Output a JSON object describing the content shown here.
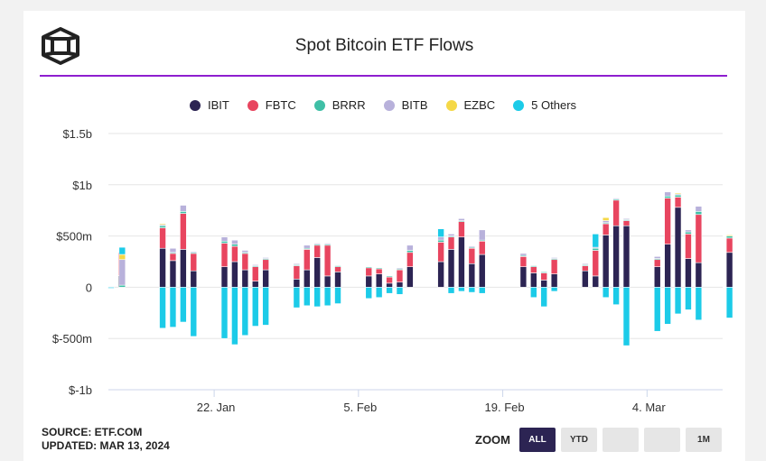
{
  "header": {
    "title": "Spot Bitcoin ETF Flows"
  },
  "legend": [
    {
      "label": "IBIT",
      "color": "#2c2453"
    },
    {
      "label": "FBTC",
      "color": "#e8455f"
    },
    {
      "label": "BRRR",
      "color": "#3fbfa6"
    },
    {
      "label": "BITB",
      "color": "#b8b1db"
    },
    {
      "label": "EZBC",
      "color": "#f5d847"
    },
    {
      "label": "5 Others",
      "color": "#1ccbe8"
    }
  ],
  "footer": {
    "source": "SOURCE: ETF.COM",
    "updated": "UPDATED: MAR 13, 2024"
  },
  "zoom": {
    "label": "ZOOM",
    "buttons": [
      "ALL",
      "YTD",
      "",
      "",
      "1M"
    ],
    "active": "ALL"
  },
  "chart_data": {
    "type": "bar",
    "stacked": true,
    "title": "Spot Bitcoin ETF Flows",
    "unit": "USD",
    "ylim": [
      -1000000000,
      1500000000
    ],
    "yticks": [
      {
        "value": 1500,
        "label": "$1.5b"
      },
      {
        "value": 1000,
        "label": "$1b"
      },
      {
        "value": 500,
        "label": "$500m"
      },
      {
        "value": 0,
        "label": "0"
      },
      {
        "value": -500,
        "label": "$-500m"
      },
      {
        "value": -1000,
        "label": "$-1b"
      }
    ],
    "xticks": [
      {
        "day": 10,
        "label": "22. Jan"
      },
      {
        "day": 24,
        "label": "5. Feb"
      },
      {
        "day": 38,
        "label": "19. Feb"
      },
      {
        "day": 52,
        "label": "4. Mar"
      }
    ],
    "series_order": [
      "IBIT",
      "FBTC",
      "BRRR",
      "BITB",
      "EZBC",
      "5 Others"
    ],
    "values_unit": "millions USD",
    "days": [
      {
        "date": "2024-01-11",
        "day": 0,
        "IBIT": 0,
        "FBTC": 0,
        "BRRR": 0,
        "BITB": 0,
        "EZBC": 0,
        "5 Others": -10
      },
      {
        "date": "2024-01-12",
        "day": 1,
        "IBIT": 112,
        "FBTC": 227,
        "BRRR": 0,
        "BITB": 0,
        "EZBC": 0,
        "5 Others": 0
      },
      {
        "date": "2024-01-12b",
        "day": 1.08,
        "IBIT": 0,
        "FBTC": 0,
        "BRRR": 20,
        "BITB": 250,
        "EZBC": 50,
        "5 Others": 70
      },
      {
        "date": "2024-01-16",
        "day": 5,
        "IBIT": 380,
        "FBTC": 200,
        "BRRR": 20,
        "BITB": 10,
        "EZBC": 10,
        "5 Others": -400
      },
      {
        "date": "2024-01-17",
        "day": 6,
        "IBIT": 260,
        "FBTC": 70,
        "BRRR": 10,
        "BITB": 40,
        "EZBC": 0,
        "5 Others": -390
      },
      {
        "date": "2024-01-18",
        "day": 7,
        "IBIT": 370,
        "FBTC": 350,
        "BRRR": 20,
        "BITB": 60,
        "EZBC": 0,
        "5 Others": -340
      },
      {
        "date": "2024-01-19",
        "day": 8,
        "IBIT": 160,
        "FBTC": 170,
        "BRRR": 10,
        "BITB": 10,
        "EZBC": 0,
        "5 Others": -480
      },
      {
        "date": "2024-01-22",
        "day": 11,
        "IBIT": 200,
        "FBTC": 230,
        "BRRR": 20,
        "BITB": 40,
        "EZBC": 0,
        "5 Others": -500
      },
      {
        "date": "2024-01-23",
        "day": 12,
        "IBIT": 250,
        "FBTC": 150,
        "BRRR": 20,
        "BITB": 40,
        "EZBC": 0,
        "5 Others": -560
      },
      {
        "date": "2024-01-24",
        "day": 13,
        "IBIT": 170,
        "FBTC": 160,
        "BRRR": 10,
        "BITB": 20,
        "EZBC": 0,
        "5 Others": -470
      },
      {
        "date": "2024-01-25",
        "day": 14,
        "IBIT": 60,
        "FBTC": 140,
        "BRRR": 10,
        "BITB": 10,
        "EZBC": 0,
        "5 Others": -380
      },
      {
        "date": "2024-01-26",
        "day": 15,
        "IBIT": 170,
        "FBTC": 100,
        "BRRR": 10,
        "BITB": 10,
        "EZBC": 0,
        "5 Others": -370
      },
      {
        "date": "2024-01-29",
        "day": 18,
        "IBIT": 80,
        "FBTC": 130,
        "BRRR": 10,
        "BITB": 10,
        "EZBC": 0,
        "5 Others": -200
      },
      {
        "date": "2024-01-30",
        "day": 19,
        "IBIT": 170,
        "FBTC": 200,
        "BRRR": 10,
        "BITB": 30,
        "EZBC": 0,
        "5 Others": -180
      },
      {
        "date": "2024-01-31",
        "day": 20,
        "IBIT": 290,
        "FBTC": 120,
        "BRRR": 10,
        "BITB": 10,
        "EZBC": 0,
        "5 Others": -190
      },
      {
        "date": "2024-02-01",
        "day": 21,
        "IBIT": 110,
        "FBTC": 300,
        "BRRR": 10,
        "BITB": 10,
        "EZBC": 0,
        "5 Others": -180
      },
      {
        "date": "2024-02-02",
        "day": 22,
        "IBIT": 150,
        "FBTC": 50,
        "BRRR": 10,
        "BITB": 0,
        "EZBC": 0,
        "5 Others": -160
      },
      {
        "date": "2024-02-05",
        "day": 25,
        "IBIT": 110,
        "FBTC": 80,
        "BRRR": 10,
        "BITB": 0,
        "EZBC": 0,
        "5 Others": -110
      },
      {
        "date": "2024-02-06",
        "day": 26,
        "IBIT": 130,
        "FBTC": 50,
        "BRRR": 10,
        "BITB": 0,
        "EZBC": 0,
        "5 Others": -100
      },
      {
        "date": "2024-02-07",
        "day": 27,
        "IBIT": 40,
        "FBTC": 60,
        "BRRR": 10,
        "BITB": 0,
        "EZBC": 0,
        "5 Others": -60
      },
      {
        "date": "2024-02-08",
        "day": 28,
        "IBIT": 50,
        "FBTC": 120,
        "BRRR": 10,
        "BITB": 10,
        "EZBC": 0,
        "5 Others": -70
      },
      {
        "date": "2024-02-09",
        "day": 29,
        "IBIT": 200,
        "FBTC": 140,
        "BRRR": 20,
        "BITB": 50,
        "EZBC": 0,
        "5 Others": 0
      },
      {
        "date": "2024-02-12",
        "day": 32,
        "IBIT": 250,
        "FBTC": 190,
        "BRRR": 20,
        "BITB": 30,
        "EZBC": 0,
        "5 Others": 80
      },
      {
        "date": "2024-02-13",
        "day": 33,
        "IBIT": 370,
        "FBTC": 120,
        "BRRR": 10,
        "BITB": 20,
        "EZBC": 0,
        "5 Others": -60
      },
      {
        "date": "2024-02-14",
        "day": 34,
        "IBIT": 490,
        "FBTC": 150,
        "BRRR": 10,
        "BITB": 20,
        "EZBC": 0,
        "5 Others": -40
      },
      {
        "date": "2024-02-15",
        "day": 35,
        "IBIT": 230,
        "FBTC": 150,
        "BRRR": 10,
        "BITB": 10,
        "EZBC": 0,
        "5 Others": -50
      },
      {
        "date": "2024-02-16",
        "day": 36,
        "IBIT": 320,
        "FBTC": 130,
        "BRRR": 10,
        "BITB": 100,
        "EZBC": 0,
        "5 Others": -60
      },
      {
        "date": "2024-02-20",
        "day": 40,
        "IBIT": 200,
        "FBTC": 100,
        "BRRR": 10,
        "BITB": 20,
        "EZBC": 0,
        "5 Others": 0
      },
      {
        "date": "2024-02-21",
        "day": 41,
        "IBIT": 140,
        "FBTC": 60,
        "BRRR": 10,
        "BITB": 0,
        "EZBC": 0,
        "5 Others": -100
      },
      {
        "date": "2024-02-22",
        "day": 42,
        "IBIT": 70,
        "FBTC": 70,
        "BRRR": 10,
        "BITB": 0,
        "EZBC": 0,
        "5 Others": -190
      },
      {
        "date": "2024-02-23",
        "day": 43,
        "IBIT": 130,
        "FBTC": 140,
        "BRRR": 10,
        "BITB": 10,
        "EZBC": 0,
        "5 Others": -40
      },
      {
        "date": "2024-02-26",
        "day": 46,
        "IBIT": 160,
        "FBTC": 50,
        "BRRR": 10,
        "BITB": 10,
        "EZBC": 0,
        "5 Others": 0
      },
      {
        "date": "2024-02-27",
        "day": 47,
        "IBIT": 110,
        "FBTC": 250,
        "BRRR": 20,
        "BITB": 10,
        "EZBC": 0,
        "5 Others": 130
      },
      {
        "date": "2024-02-28",
        "day": 48,
        "IBIT": 510,
        "FBTC": 110,
        "BRRR": 10,
        "BITB": 20,
        "EZBC": 30,
        "5 Others": -100
      },
      {
        "date": "2024-02-29",
        "day": 49,
        "IBIT": 600,
        "FBTC": 250,
        "BRRR": 10,
        "BITB": 10,
        "EZBC": 0,
        "5 Others": -170
      },
      {
        "date": "2024-03-01",
        "day": 50,
        "IBIT": 600,
        "FBTC": 50,
        "BRRR": 10,
        "BITB": 10,
        "EZBC": 0,
        "5 Others": -570
      },
      {
        "date": "2024-03-04",
        "day": 53,
        "IBIT": 200,
        "FBTC": 70,
        "BRRR": 10,
        "BITB": 20,
        "EZBC": 0,
        "5 Others": -430
      },
      {
        "date": "2024-03-05",
        "day": 54,
        "IBIT": 420,
        "FBTC": 450,
        "BRRR": 20,
        "BITB": 40,
        "EZBC": 0,
        "5 Others": -360
      },
      {
        "date": "2024-03-06",
        "day": 55,
        "IBIT": 780,
        "FBTC": 100,
        "BRRR": 20,
        "BITB": 10,
        "EZBC": 10,
        "5 Others": -260
      },
      {
        "date": "2024-03-07",
        "day": 56,
        "IBIT": 280,
        "FBTC": 240,
        "BRRR": 20,
        "BITB": 20,
        "EZBC": 0,
        "5 Others": -220
      },
      {
        "date": "2024-03-08",
        "day": 57,
        "IBIT": 240,
        "FBTC": 470,
        "BRRR": 30,
        "BITB": 50,
        "EZBC": 0,
        "5 Others": -320
      },
      {
        "date": "2024-03-11",
        "day": 60,
        "IBIT": 340,
        "FBTC": 140,
        "BRRR": 20,
        "BITB": 0,
        "EZBC": 10,
        "5 Others": -300
      }
    ]
  }
}
